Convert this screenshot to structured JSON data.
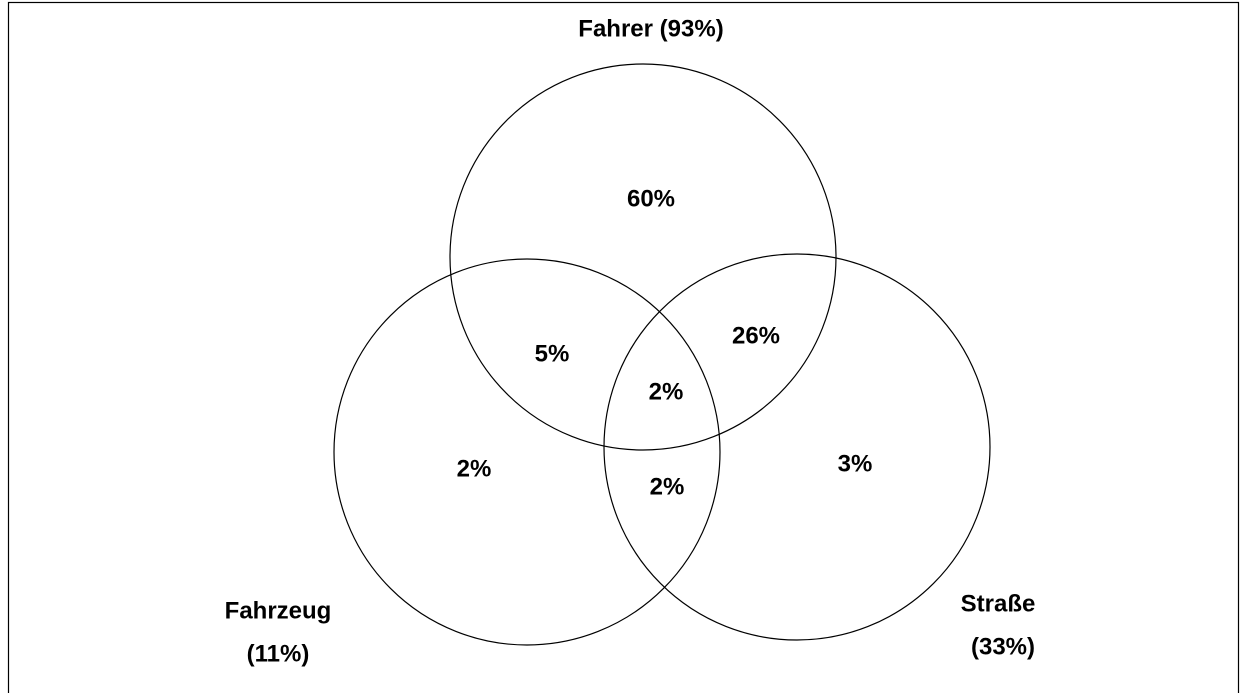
{
  "diagram": {
    "sets": [
      {
        "label_lines": [
          "Fahrer (93%)"
        ]
      },
      {
        "label_lines": [
          "Fahrzeug",
          "(11%)"
        ]
      },
      {
        "label_lines": [
          "Straße",
          "(33%)"
        ]
      }
    ],
    "regions": [
      {
        "label": "60%"
      },
      {
        "label": "5%"
      },
      {
        "label": "26%"
      },
      {
        "label": "2%"
      },
      {
        "label": "2%"
      },
      {
        "label": "2%"
      },
      {
        "label": "3%"
      }
    ]
  }
}
